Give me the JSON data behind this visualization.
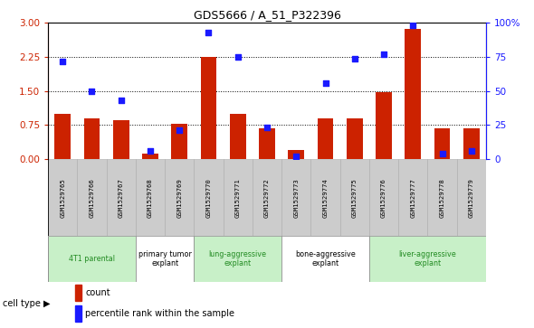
{
  "title": "GDS5666 / A_51_P322396",
  "samples": [
    "GSM1529765",
    "GSM1529766",
    "GSM1529767",
    "GSM1529768",
    "GSM1529769",
    "GSM1529770",
    "GSM1529771",
    "GSM1529772",
    "GSM1529773",
    "GSM1529774",
    "GSM1529775",
    "GSM1529776",
    "GSM1529777",
    "GSM1529778",
    "GSM1529779"
  ],
  "bar_values": [
    1.0,
    0.9,
    0.85,
    0.13,
    0.78,
    2.25,
    1.0,
    0.68,
    0.2,
    0.9,
    0.9,
    1.47,
    2.87,
    0.68,
    0.68
  ],
  "dot_percentile": [
    72,
    50,
    43,
    6,
    21,
    93,
    75,
    23,
    2,
    56,
    74,
    77,
    98,
    4,
    6
  ],
  "ylim_left": [
    0,
    3
  ],
  "ylim_right": [
    0,
    100
  ],
  "yticks_left": [
    0,
    0.75,
    1.5,
    2.25,
    3
  ],
  "yticks_right": [
    0,
    25,
    50,
    75,
    100
  ],
  "bar_color": "#cc2200",
  "dot_color": "#1a1aff",
  "cell_types": [
    {
      "label": "4T1 parental",
      "start": 0,
      "end": 3,
      "color": "#c8f0c8"
    },
    {
      "label": "primary tumor\nexplant",
      "start": 3,
      "end": 5,
      "color": "#ffffff"
    },
    {
      "label": "lung-aggressive\nexplant",
      "start": 5,
      "end": 8,
      "color": "#c8f0c8"
    },
    {
      "label": "bone-aggressive\nexplant",
      "start": 8,
      "end": 11,
      "color": "#ffffff"
    },
    {
      "label": "liver-aggressive\nexplant",
      "start": 11,
      "end": 15,
      "color": "#c8f0c8"
    }
  ],
  "legend_count_label": "count",
  "legend_pct_label": "percentile rank within the sample",
  "cell_type_label": "cell type",
  "tick_color_left": "#cc2200",
  "tick_color_right": "#1a1aff",
  "sample_box_color": "#cccccc",
  "grid_lines": [
    0.75,
    1.5,
    2.25
  ]
}
